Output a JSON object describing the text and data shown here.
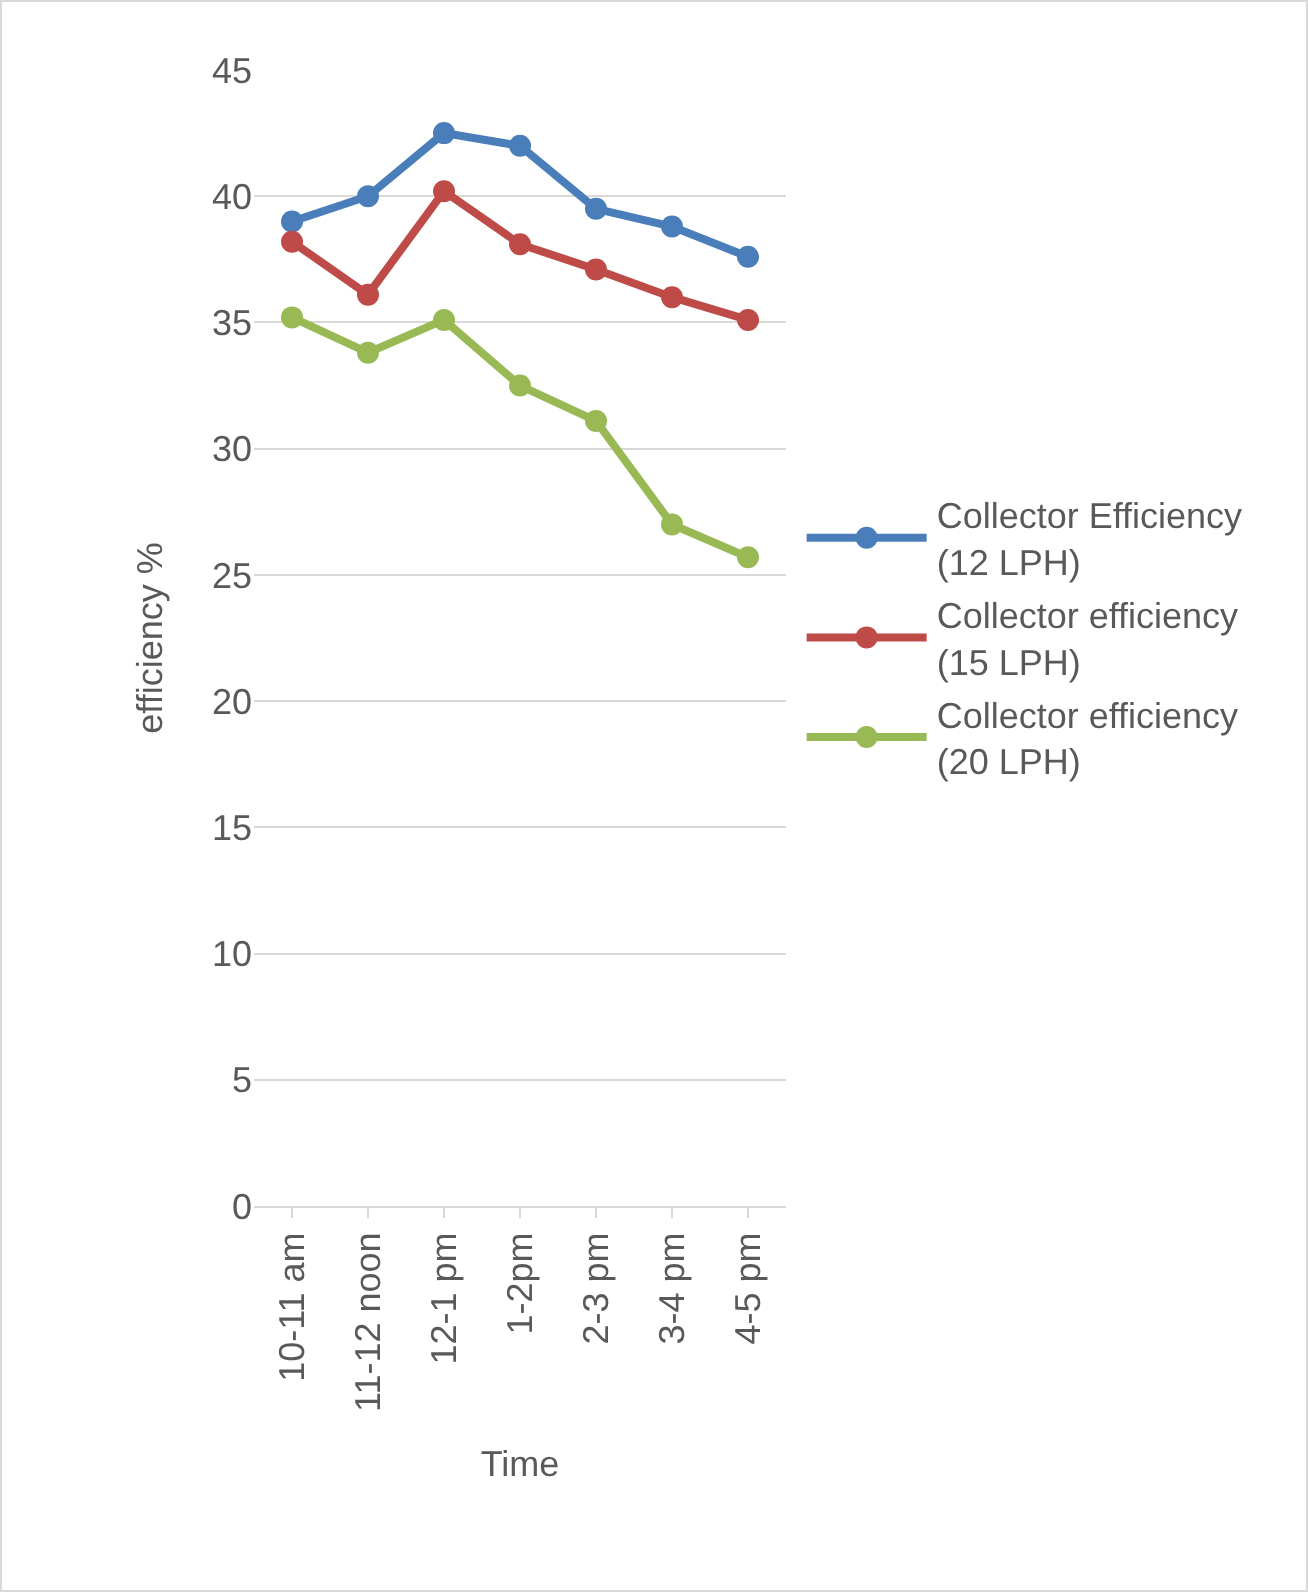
{
  "chart_data": {
    "type": "line",
    "xlabel": "Time",
    "ylabel": "efficiency %",
    "categories": [
      "10-11 am",
      "11-12 noon",
      "12-1 pm",
      "1-2pm",
      "2-3 pm",
      "3-4 pm",
      "4-5 pm"
    ],
    "series": [
      {
        "name": "Collector Efficiency (12 LPH)",
        "color": "#4a7ebb",
        "values": [
          39,
          40,
          42.5,
          42,
          39.5,
          38.8,
          37.6
        ]
      },
      {
        "name": "Collector efficiency (15 LPH)",
        "color": "#be4b48",
        "values": [
          38.2,
          36.1,
          40.2,
          38.1,
          37.1,
          36,
          35.1
        ]
      },
      {
        "name": "Collector efficiency (20 LPH)",
        "color": "#98b954",
        "values": [
          35.2,
          33.8,
          35.1,
          32.5,
          31.1,
          27,
          25.7
        ]
      }
    ],
    "ylim": [
      0,
      45
    ],
    "yticks": [
      0,
      5,
      10,
      15,
      20,
      25,
      30,
      35,
      40,
      45
    ],
    "grid": "y",
    "legend": "right",
    "marker": "circle",
    "line_style": "solid"
  }
}
